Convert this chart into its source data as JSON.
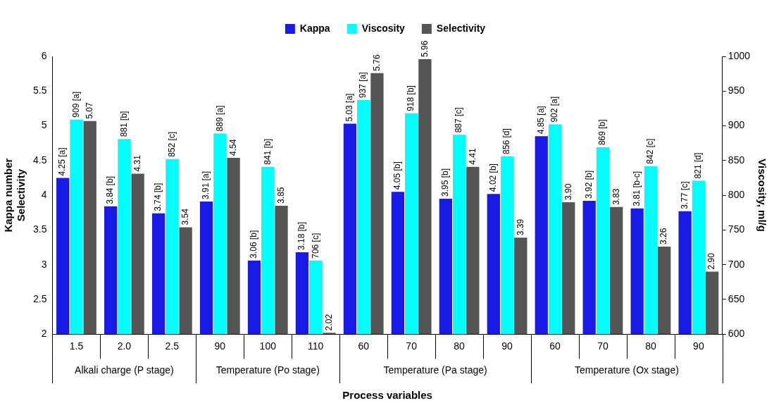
{
  "chart_data": {
    "type": "bar",
    "xlabel": "Process variables",
    "ylabel": "Kappa number\nSelectivity",
    "y2label": "Viscosity, ml/g",
    "categories": [
      "1.5",
      "2.0",
      "2.5",
      "90",
      "100",
      "110",
      "60",
      "70",
      "80",
      "90",
      "60",
      "70",
      "80",
      "90"
    ],
    "annotations": [
      "Alkali charge (P stage)",
      "Temperature (Po stage)",
      "Temperature (Pa stage)",
      "Temperature (Ox stage)"
    ],
    "series": [
      {
        "name": "Kappa",
        "color": "#1a1ae6",
        "values": [
          4.25,
          3.84,
          3.74,
          3.91,
          3.06,
          3.18,
          5.03,
          4.05,
          3.95,
          4.02,
          4.85,
          3.92,
          3.81,
          3.77
        ],
        "value_labels": [
          "4.25 [a]",
          "3.84 [b]",
          "3.74 [b]",
          "3.91 [a]",
          "3.06 [b]",
          "3.18 [b]",
          "5.03 [a]",
          "4.05 [b]",
          "3.95 [b]",
          "4.02 [b]",
          "4.85 [a]",
          "3.92 [b]",
          "3.81 [b-c]",
          "3.77 [c]"
        ]
      },
      {
        "name": "Viscosity",
        "color": "#00ffff",
        "axis": "y2",
        "values": [
          909,
          881,
          852,
          889,
          841,
          706,
          937,
          918,
          887,
          856,
          902,
          869,
          842,
          821
        ],
        "value_labels": [
          "909 [a]",
          "881 [b]",
          "852 [c]",
          "889 [a]",
          "841 [b]",
          "706 [c]",
          "937 [a]",
          "918 [b]",
          "887 [c]",
          "856 [d]",
          "902 [a]",
          "869 [b]",
          "842 [c]",
          "821 [d]"
        ]
      },
      {
        "name": "Selectivity",
        "color": "#555555",
        "values": [
          5.07,
          4.31,
          3.54,
          4.54,
          3.85,
          2.02,
          5.76,
          5.96,
          4.41,
          3.39,
          3.9,
          3.83,
          3.26,
          2.9
        ],
        "value_labels": [
          "5.07",
          "4.31",
          "3.54",
          "4.54",
          "3.85",
          "2.02",
          "5.76",
          "5.96",
          "4.41",
          "3.39",
          "3.90",
          "3.83",
          "3.26",
          "2.90"
        ]
      }
    ],
    "ylim": [
      2,
      6
    ],
    "yticks": [
      2,
      2.5,
      3,
      3.5,
      4,
      4.5,
      5,
      5.5,
      6
    ],
    "y2lim": [
      600,
      1000
    ],
    "y2ticks": [
      600,
      650,
      700,
      750,
      800,
      850,
      900,
      950,
      1000
    ],
    "grid": false,
    "legend": "top"
  }
}
